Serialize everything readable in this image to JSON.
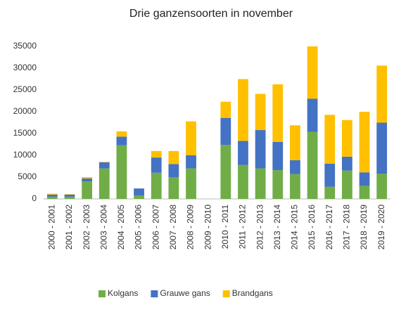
{
  "chart_data": {
    "type": "stacked_bar",
    "title": "Drie ganzensoorten in november",
    "categories": [
      "2000 - 2001",
      "2001 - 2002",
      "2002 - 2003",
      "2003 - 2004",
      "2004 - 2005",
      "2005 - 2006",
      "2006 - 2007",
      "2007 - 2008",
      "2008 - 2009",
      "2009 - 2010",
      "2010 - 2011",
      "2011 - 2012",
      "2012 - 2013",
      "2013 - 2014",
      "2014 - 2015",
      "2015 - 2016",
      "2016 - 2017",
      "2017 - 2018",
      "2018 - 2019",
      "2019 - 2020"
    ],
    "series": [
      {
        "name": "Kolgans",
        "color": "#70ad47",
        "values": [
          500,
          500,
          4000,
          7000,
          12300,
          800,
          6000,
          5000,
          7000,
          0,
          12400,
          7800,
          7000,
          6600,
          5700,
          15400,
          2800,
          6500,
          3000,
          5800
        ]
      },
      {
        "name": "Grauwe gans",
        "color": "#4472c4",
        "values": [
          500,
          500,
          700,
          1400,
          2000,
          1600,
          3500,
          3000,
          3000,
          0,
          6200,
          5500,
          8800,
          6500,
          3200,
          7600,
          5300,
          3200,
          3100,
          11700
        ]
      },
      {
        "name": "Brandgans",
        "color": "#ffc000",
        "values": [
          200,
          100,
          300,
          100,
          1200,
          0,
          1500,
          3000,
          7800,
          0,
          3700,
          14200,
          8300,
          13200,
          8000,
          12000,
          11200,
          8400,
          13900,
          13100
        ]
      }
    ],
    "ylim": [
      0,
      35000
    ],
    "yticks": [
      0,
      5000,
      10000,
      15000,
      20000,
      25000,
      30000,
      35000
    ],
    "grid": false,
    "legend": "bottom"
  }
}
